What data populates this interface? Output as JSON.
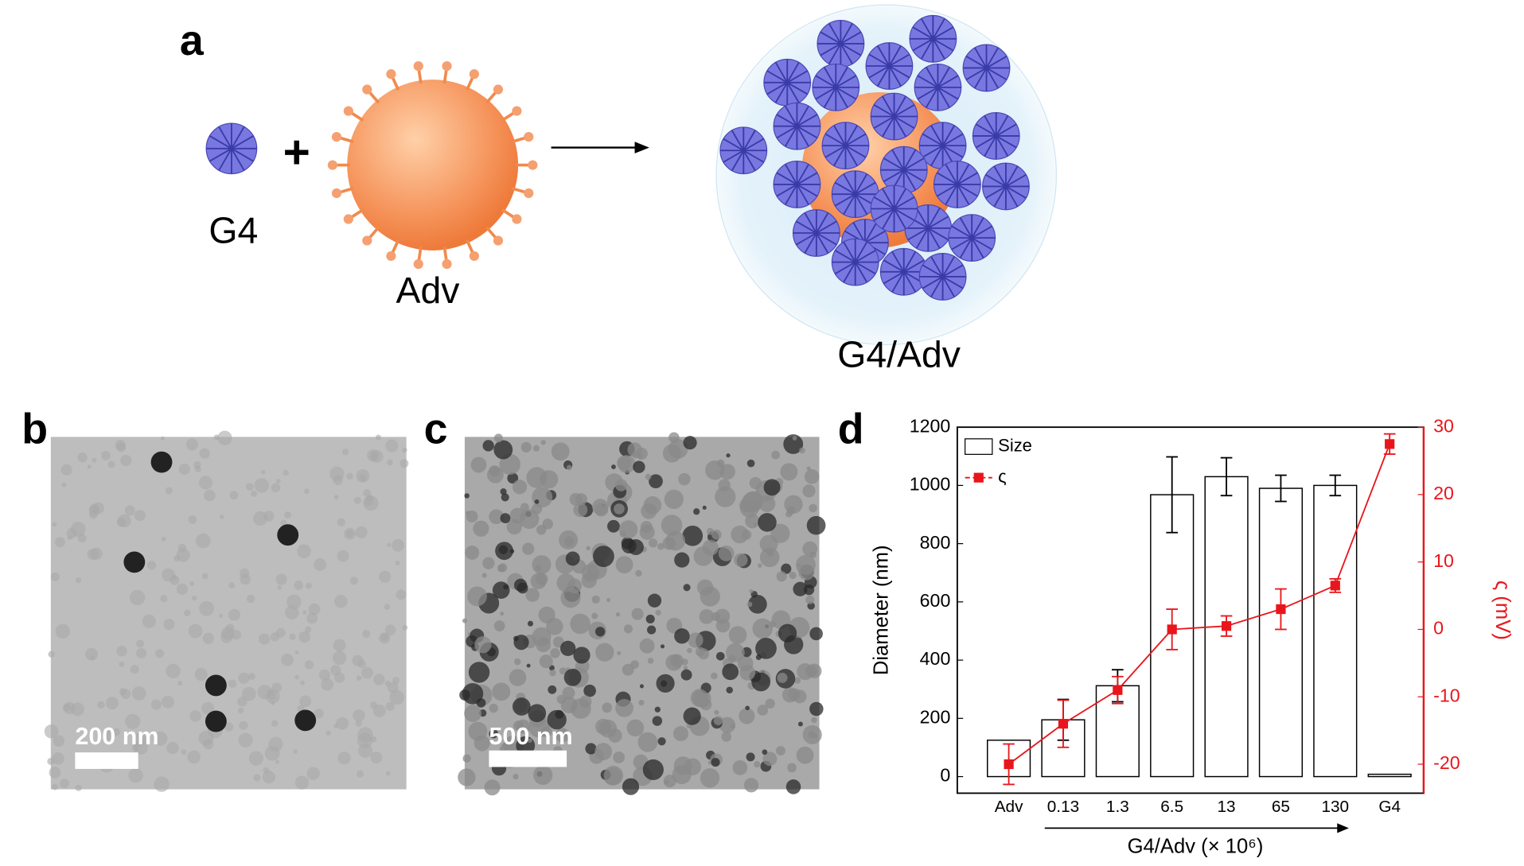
{
  "panel_labels": [
    "a",
    "b",
    "c",
    "d"
  ],
  "schematic": {
    "g4_label": "G4",
    "adv_label": "Adv",
    "complex_label": "G4/Adv"
  },
  "scale_bars": [
    "200 nm",
    "500 nm"
  ],
  "chart_data": {
    "type": "combo",
    "categories": [
      "Adv",
      "0.13",
      "1.3",
      "6.5",
      "13",
      "65",
      "130",
      "G4"
    ],
    "xlabel": "G4/Adv (× 10⁶)",
    "ylabel": "Diameter (nm)",
    "y2label": "ς (mV)",
    "ylim": [
      -57,
      1200
    ],
    "yticks": [
      0,
      200,
      400,
      600,
      800,
      1000,
      1200
    ],
    "y2lim": [
      -24.3,
      30
    ],
    "y2ticks": [
      -20,
      -10,
      0,
      10,
      20,
      30
    ],
    "legend": "upper left",
    "series": [
      {
        "name": "Size",
        "type": "bar",
        "color": "#ffffff",
        "edgecolor": "#000000",
        "values": [
          125,
          195,
          312,
          968,
          1030,
          990,
          1000,
          8
        ],
        "errors": [
          null,
          70,
          55,
          130,
          65,
          45,
          35,
          null
        ]
      },
      {
        "name": "ς",
        "type": "line",
        "axis": "y2",
        "color": "#e8161c",
        "values": [
          -20,
          -14,
          -9,
          0,
          0.5,
          3,
          6.5,
          27.5
        ],
        "errors": [
          3,
          3.5,
          2,
          3,
          1.5,
          3,
          1,
          1.5
        ]
      }
    ]
  }
}
